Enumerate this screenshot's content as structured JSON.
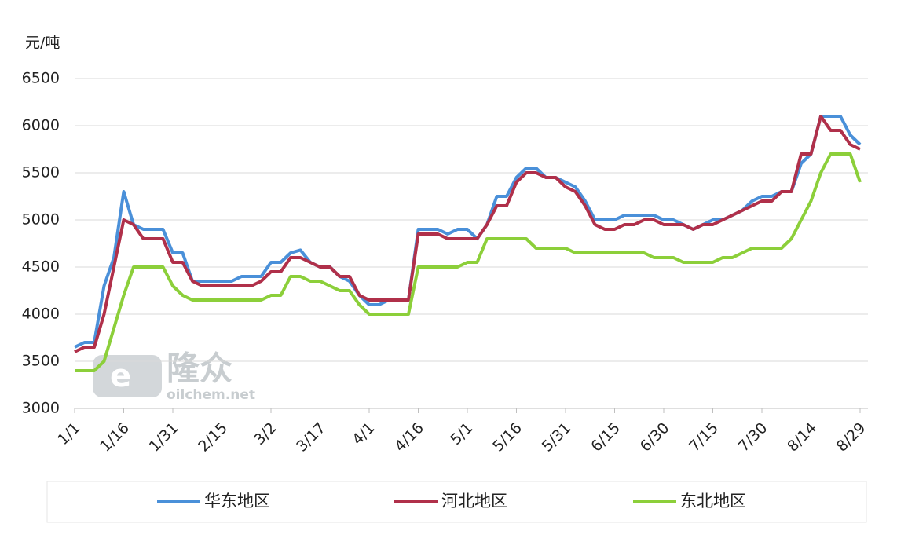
{
  "chart_data": {
    "type": "line",
    "y_unit": "元/吨",
    "watermark": [
      "隆众",
      "oilchem.net"
    ],
    "categories": [
      "1/1",
      null,
      null,
      null,
      null,
      "1/16",
      null,
      null,
      null,
      null,
      "1/31",
      null,
      null,
      null,
      null,
      "2/15",
      null,
      null,
      null,
      null,
      "3/2",
      null,
      null,
      null,
      null,
      "3/17",
      null,
      null,
      null,
      null,
      "4/1",
      null,
      null,
      null,
      null,
      "4/16",
      null,
      null,
      null,
      null,
      "5/1",
      null,
      null,
      null,
      null,
      "5/16",
      null,
      null,
      null,
      null,
      "5/31",
      null,
      null,
      null,
      null,
      "6/15",
      null,
      null,
      null,
      null,
      "6/30",
      null,
      null,
      null,
      null,
      "7/15",
      null,
      null,
      null,
      null,
      "7/30",
      null,
      null,
      null,
      null,
      "8/14",
      null,
      null,
      null,
      null,
      "8/29"
    ],
    "series": [
      {
        "name": "华东地区",
        "color": "#4a90d9",
        "values": [
          3650,
          3700,
          3700,
          4300,
          4600,
          5300,
          4950,
          4900,
          4900,
          4900,
          4650,
          4650,
          4350,
          4350,
          4350,
          4350,
          4350,
          4400,
          4400,
          4400,
          4550,
          4550,
          4650,
          4680,
          4550,
          4500,
          4500,
          4400,
          4350,
          4200,
          4100,
          4100,
          4150,
          4150,
          4150,
          4900,
          4900,
          4900,
          4850,
          4900,
          4900,
          4800,
          4950,
          5250,
          5250,
          5450,
          5550,
          5550,
          5450,
          5450,
          5400,
          5350,
          5200,
          5000,
          5000,
          5000,
          5050,
          5050,
          5050,
          5050,
          5000,
          5000,
          4950,
          4900,
          4950,
          5000,
          5000,
          5050,
          5100,
          5200,
          5250,
          5250,
          5300,
          5300,
          5600,
          5700,
          6100,
          6100,
          6100,
          5900,
          5800
        ]
      },
      {
        "name": "河北地区",
        "color": "#b0304a",
        "values": [
          3600,
          3650,
          3650,
          4000,
          4500,
          5000,
          4950,
          4800,
          4800,
          4800,
          4550,
          4550,
          4350,
          4300,
          4300,
          4300,
          4300,
          4300,
          4300,
          4350,
          4450,
          4450,
          4600,
          4600,
          4550,
          4500,
          4500,
          4400,
          4400,
          4200,
          4150,
          4150,
          4150,
          4150,
          4150,
          4850,
          4850,
          4850,
          4800,
          4800,
          4800,
          4800,
          4950,
          5150,
          5150,
          5400,
          5500,
          5500,
          5450,
          5450,
          5350,
          5300,
          5150,
          4950,
          4900,
          4900,
          4950,
          4950,
          5000,
          5000,
          4950,
          4950,
          4950,
          4900,
          4950,
          4950,
          5000,
          5050,
          5100,
          5150,
          5200,
          5200,
          5300,
          5300,
          5700,
          5700,
          6100,
          5950,
          5950,
          5800,
          5750
        ]
      },
      {
        "name": "东北地区",
        "color": "#8ccf3a",
        "values": [
          3400,
          3400,
          3400,
          3500,
          3850,
          4200,
          4500,
          4500,
          4500,
          4500,
          4300,
          4200,
          4150,
          4150,
          4150,
          4150,
          4150,
          4150,
          4150,
          4150,
          4200,
          4200,
          4400,
          4400,
          4350,
          4350,
          4300,
          4250,
          4250,
          4100,
          4000,
          4000,
          4000,
          4000,
          4000,
          4500,
          4500,
          4500,
          4500,
          4500,
          4550,
          4550,
          4800,
          4800,
          4800,
          4800,
          4800,
          4700,
          4700,
          4700,
          4700,
          4650,
          4650,
          4650,
          4650,
          4650,
          4650,
          4650,
          4650,
          4600,
          4600,
          4600,
          4550,
          4550,
          4550,
          4550,
          4600,
          4600,
          4650,
          4700,
          4700,
          4700,
          4700,
          4800,
          5000,
          5200,
          5500,
          5700,
          5700,
          5700,
          5400
        ]
      }
    ],
    "ylim": [
      3000,
      6500
    ],
    "yticks": [
      3000,
      3500,
      4000,
      4500,
      5000,
      5500,
      6000,
      6500
    ],
    "grid": true,
    "legend": "bottom"
  }
}
